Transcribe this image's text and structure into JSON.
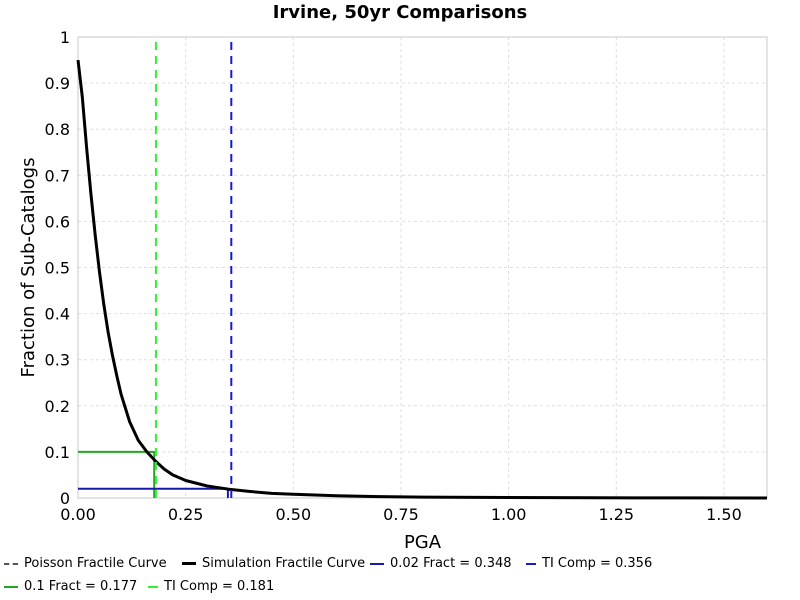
{
  "chart_data": {
    "type": "line",
    "title": "Irvine, 50yr Comparisons",
    "xlabel": "PGA",
    "ylabel": "Fraction of Sub-Catalogs",
    "xlim": [
      0,
      1.6
    ],
    "ylim": [
      0,
      1
    ],
    "x_ticks": [
      "0.00",
      "0.25",
      "0.50",
      "0.75",
      "1.00",
      "1.25",
      "1.50"
    ],
    "y_ticks": [
      "0",
      "0.1",
      "0.2",
      "0.3",
      "0.4",
      "0.5",
      "0.6",
      "0.7",
      "0.8",
      "0.9",
      "1"
    ],
    "grid": true,
    "legend_position": "bottom",
    "series": [
      {
        "name": "Poisson Fractile Curve",
        "color": "#555555",
        "style": "dashed",
        "x": [],
        "y": []
      },
      {
        "name": "Simulation Fractile Curve",
        "color": "#000000",
        "style": "solid",
        "x": [
          0.0,
          0.01,
          0.02,
          0.03,
          0.04,
          0.05,
          0.06,
          0.07,
          0.08,
          0.09,
          0.1,
          0.12,
          0.14,
          0.16,
          0.18,
          0.2,
          0.22,
          0.25,
          0.3,
          0.35,
          0.4,
          0.45,
          0.5,
          0.6,
          0.7,
          0.8,
          1.0,
          1.2,
          1.4,
          1.6
        ],
        "y": [
          0.95,
          0.87,
          0.76,
          0.66,
          0.57,
          0.49,
          0.42,
          0.36,
          0.31,
          0.265,
          0.225,
          0.165,
          0.125,
          0.1,
          0.08,
          0.063,
          0.05,
          0.038,
          0.026,
          0.019,
          0.014,
          0.01,
          0.008,
          0.005,
          0.003,
          0.002,
          0.001,
          0.0005,
          0.0002,
          0.0001
        ]
      },
      {
        "name": "0.02 Fract = 0.348",
        "color": "#1a1aa8",
        "style": "solid",
        "x": [
          0,
          0.348,
          0.348
        ],
        "y": [
          0.02,
          0.02,
          0
        ]
      },
      {
        "name": "TI Comp = 0.356",
        "color": "#1a1acc",
        "style": "dashed",
        "x": [
          0.356,
          0.356
        ],
        "y": [
          0,
          1
        ]
      },
      {
        "name": "0.1 Fract = 0.177",
        "color": "#1fa81f",
        "style": "solid",
        "x": [
          0,
          0.177,
          0.177
        ],
        "y": [
          0.1,
          0.1,
          0
        ]
      },
      {
        "name": "TI Comp = 0.181",
        "color": "#33ee33",
        "style": "dashed",
        "x": [
          0.181,
          0.181
        ],
        "y": [
          0,
          1
        ]
      }
    ]
  }
}
